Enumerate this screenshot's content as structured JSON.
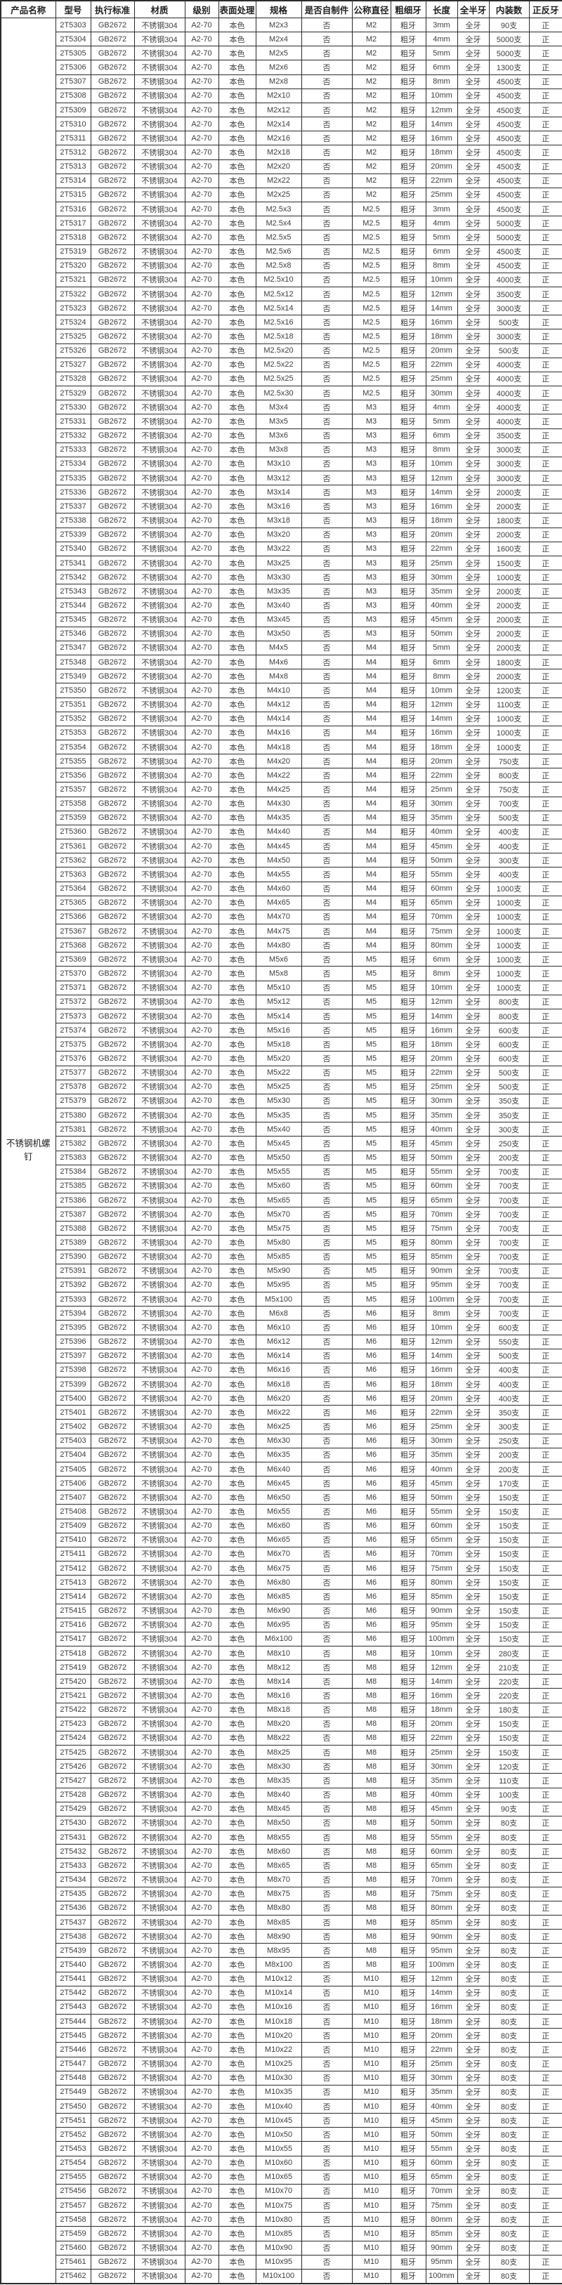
{
  "colors": {
    "border": "#2b2b2b",
    "text": "#3f3f3f",
    "header_text": "#1f1f1f",
    "background": "#ffffff"
  },
  "table": {
    "product_name": "不锈钢机螺钉",
    "columns": [
      {
        "key": "product_name",
        "label": "产品名称"
      },
      {
        "key": "model",
        "label": "型号"
      },
      {
        "key": "standard",
        "label": "执行标准"
      },
      {
        "key": "material",
        "label": "材质"
      },
      {
        "key": "grade",
        "label": "级别"
      },
      {
        "key": "surface_finish",
        "label": "表面处理"
      },
      {
        "key": "spec",
        "label": "规格"
      },
      {
        "key": "self_made",
        "label": "是否自制件"
      },
      {
        "key": "nominal_diameter",
        "label": "公称直径"
      },
      {
        "key": "thread_pitch",
        "label": "粗细牙"
      },
      {
        "key": "length",
        "label": "长度"
      },
      {
        "key": "thread_coverage",
        "label": "全半牙"
      },
      {
        "key": "pack_quantity",
        "label": "内装数"
      },
      {
        "key": "thread_direction",
        "label": "正反牙"
      }
    ],
    "shared": {
      "standard": "GB2672",
      "material": "不锈钢304",
      "grade": "A2-70",
      "surface_finish": "本色",
      "self_made": "否",
      "thread_pitch": "粗牙",
      "thread_coverage": "全牙",
      "thread_direction": "正"
    },
    "rows": [
      [
        "2T5303",
        "M2x3",
        "M2",
        "3mm",
        "90支"
      ],
      [
        "2T5304",
        "M2x4",
        "M2",
        "4mm",
        "5000支"
      ],
      [
        "2T5305",
        "M2x5",
        "M2",
        "5mm",
        "5000支"
      ],
      [
        "2T5306",
        "M2x6",
        "M2",
        "6mm",
        "1300支"
      ],
      [
        "2T5307",
        "M2x8",
        "M2",
        "8mm",
        "4500支"
      ],
      [
        "2T5308",
        "M2x10",
        "M2",
        "10mm",
        "4500支"
      ],
      [
        "2T5309",
        "M2x12",
        "M2",
        "12mm",
        "4500支"
      ],
      [
        "2T5310",
        "M2x14",
        "M2",
        "14mm",
        "4500支"
      ],
      [
        "2T5311",
        "M2x16",
        "M2",
        "16mm",
        "4500支"
      ],
      [
        "2T5312",
        "M2x18",
        "M2",
        "18mm",
        "4500支"
      ],
      [
        "2T5313",
        "M2x20",
        "M2",
        "20mm",
        "4500支"
      ],
      [
        "2T5314",
        "M2x22",
        "M2",
        "22mm",
        "4500支"
      ],
      [
        "2T5315",
        "M2x25",
        "M2",
        "25mm",
        "4500支"
      ],
      [
        "2T5316",
        "M2.5x3",
        "M2.5",
        "3mm",
        "4500支"
      ],
      [
        "2T5317",
        "M2.5x4",
        "M2.5",
        "4mm",
        "5000支"
      ],
      [
        "2T5318",
        "M2.5x5",
        "M2.5",
        "5mm",
        "5000支"
      ],
      [
        "2T5319",
        "M2.5x6",
        "M2.5",
        "6mm",
        "4500支"
      ],
      [
        "2T5320",
        "M2.5x8",
        "M2.5",
        "8mm",
        "4500支"
      ],
      [
        "2T5321",
        "M2.5x10",
        "M2.5",
        "10mm",
        "4000支"
      ],
      [
        "2T5322",
        "M2.5x12",
        "M2.5",
        "12mm",
        "3500支"
      ],
      [
        "2T5323",
        "M2.5x14",
        "M2.5",
        "14mm",
        "3000支"
      ],
      [
        "2T5324",
        "M2.5x16",
        "M2.5",
        "16mm",
        "500支"
      ],
      [
        "2T5325",
        "M2.5x18",
        "M2.5",
        "18mm",
        "3000支"
      ],
      [
        "2T5326",
        "M2.5x20",
        "M2.5",
        "20mm",
        "500支"
      ],
      [
        "2T5327",
        "M2.5x22",
        "M2.5",
        "22mm",
        "4000支"
      ],
      [
        "2T5328",
        "M2.5x25",
        "M2.5",
        "25mm",
        "4000支"
      ],
      [
        "2T5329",
        "M2.5x30",
        "M2.5",
        "30mm",
        "4000支"
      ],
      [
        "2T5330",
        "M3x4",
        "M3",
        "4mm",
        "4000支"
      ],
      [
        "2T5331",
        "M3x5",
        "M3",
        "5mm",
        "4000支"
      ],
      [
        "2T5332",
        "M3x6",
        "M3",
        "6mm",
        "3500支"
      ],
      [
        "2T5333",
        "M3x8",
        "M3",
        "8mm",
        "3000支"
      ],
      [
        "2T5334",
        "M3x10",
        "M3",
        "10mm",
        "3000支"
      ],
      [
        "2T5335",
        "M3x12",
        "M3",
        "12mm",
        "3000支"
      ],
      [
        "2T5336",
        "M3x14",
        "M3",
        "14mm",
        "2000支"
      ],
      [
        "2T5337",
        "M3x16",
        "M3",
        "16mm",
        "2000支"
      ],
      [
        "2T5338",
        "M3x18",
        "M3",
        "18mm",
        "1800支"
      ],
      [
        "2T5339",
        "M3x20",
        "M3",
        "20mm",
        "2000支"
      ],
      [
        "2T5340",
        "M3x22",
        "M3",
        "22mm",
        "1600支"
      ],
      [
        "2T5341",
        "M3x25",
        "M3",
        "25mm",
        "1500支"
      ],
      [
        "2T5342",
        "M3x30",
        "M3",
        "30mm",
        "1000支"
      ],
      [
        "2T5343",
        "M3x35",
        "M3",
        "35mm",
        "2000支"
      ],
      [
        "2T5344",
        "M3x40",
        "M3",
        "40mm",
        "2000支"
      ],
      [
        "2T5345",
        "M3x45",
        "M3",
        "45mm",
        "2000支"
      ],
      [
        "2T5346",
        "M3x50",
        "M3",
        "50mm",
        "2000支"
      ],
      [
        "2T5347",
        "M4x5",
        "M4",
        "5mm",
        "2000支"
      ],
      [
        "2T5348",
        "M4x6",
        "M4",
        "6mm",
        "1800支"
      ],
      [
        "2T5349",
        "M4x8",
        "M4",
        "8mm",
        "2000支"
      ],
      [
        "2T5350",
        "M4x10",
        "M4",
        "10mm",
        "1200支"
      ],
      [
        "2T5351",
        "M4x12",
        "M4",
        "12mm",
        "1100支"
      ],
      [
        "2T5352",
        "M4x14",
        "M4",
        "14mm",
        "1000支"
      ],
      [
        "2T5353",
        "M4x16",
        "M4",
        "16mm",
        "1000支"
      ],
      [
        "2T5354",
        "M4x18",
        "M4",
        "18mm",
        "1000支"
      ],
      [
        "2T5355",
        "M4x20",
        "M4",
        "20mm",
        "750支"
      ],
      [
        "2T5356",
        "M4x22",
        "M4",
        "22mm",
        "800支"
      ],
      [
        "2T5357",
        "M4x25",
        "M4",
        "25mm",
        "750支"
      ],
      [
        "2T5358",
        "M4x30",
        "M4",
        "30mm",
        "700支"
      ],
      [
        "2T5359",
        "M4x35",
        "M4",
        "35mm",
        "500支"
      ],
      [
        "2T5360",
        "M4x40",
        "M4",
        "40mm",
        "400支"
      ],
      [
        "2T5361",
        "M4x45",
        "M4",
        "45mm",
        "400支"
      ],
      [
        "2T5362",
        "M4x50",
        "M4",
        "50mm",
        "300支"
      ],
      [
        "2T5363",
        "M4x55",
        "M4",
        "55mm",
        "400支"
      ],
      [
        "2T5364",
        "M4x60",
        "M4",
        "60mm",
        "1000支"
      ],
      [
        "2T5365",
        "M4x65",
        "M4",
        "65mm",
        "1000支"
      ],
      [
        "2T5366",
        "M4x70",
        "M4",
        "70mm",
        "1000支"
      ],
      [
        "2T5367",
        "M4x75",
        "M4",
        "75mm",
        "1000支"
      ],
      [
        "2T5368",
        "M4x80",
        "M4",
        "80mm",
        "1000支"
      ],
      [
        "2T5369",
        "M5x6",
        "M5",
        "6mm",
        "1000支"
      ],
      [
        "2T5370",
        "M5x8",
        "M5",
        "8mm",
        "1000支"
      ],
      [
        "2T5371",
        "M5x10",
        "M5",
        "10mm",
        "1000支"
      ],
      [
        "2T5372",
        "M5x12",
        "M5",
        "12mm",
        "800支"
      ],
      [
        "2T5373",
        "M5x14",
        "M5",
        "14mm",
        "800支"
      ],
      [
        "2T5374",
        "M5x16",
        "M5",
        "16mm",
        "600支"
      ],
      [
        "2T5375",
        "M5x18",
        "M5",
        "18mm",
        "600支"
      ],
      [
        "2T5376",
        "M5x20",
        "M5",
        "20mm",
        "600支"
      ],
      [
        "2T5377",
        "M5x22",
        "M5",
        "22mm",
        "500支"
      ],
      [
        "2T5378",
        "M5x25",
        "M5",
        "25mm",
        "500支"
      ],
      [
        "2T5379",
        "M5x30",
        "M5",
        "30mm",
        "350支"
      ],
      [
        "2T5380",
        "M5x35",
        "M5",
        "35mm",
        "350支"
      ],
      [
        "2T5381",
        "M5x40",
        "M5",
        "40mm",
        "300支"
      ],
      [
        "2T5382",
        "M5x45",
        "M5",
        "45mm",
        "250支"
      ],
      [
        "2T5383",
        "M5x50",
        "M5",
        "50mm",
        "200支"
      ],
      [
        "2T5384",
        "M5x55",
        "M5",
        "55mm",
        "700支"
      ],
      [
        "2T5385",
        "M5x60",
        "M5",
        "60mm",
        "700支"
      ],
      [
        "2T5386",
        "M5x65",
        "M5",
        "65mm",
        "700支"
      ],
      [
        "2T5387",
        "M5x70",
        "M5",
        "70mm",
        "700支"
      ],
      [
        "2T5388",
        "M5x75",
        "M5",
        "75mm",
        "700支"
      ],
      [
        "2T5389",
        "M5x80",
        "M5",
        "80mm",
        "700支"
      ],
      [
        "2T5390",
        "M5x85",
        "M5",
        "85mm",
        "700支"
      ],
      [
        "2T5391",
        "M5x90",
        "M5",
        "90mm",
        "700支"
      ],
      [
        "2T5392",
        "M5x95",
        "M5",
        "95mm",
        "700支"
      ],
      [
        "2T5393",
        "M5x100",
        "M5",
        "100mm",
        "700支"
      ],
      [
        "2T5394",
        "M6x8",
        "M6",
        "8mm",
        "700支"
      ],
      [
        "2T5395",
        "M6x10",
        "M6",
        "10mm",
        "600支"
      ],
      [
        "2T5396",
        "M6x12",
        "M6",
        "12mm",
        "550支"
      ],
      [
        "2T5397",
        "M6x14",
        "M6",
        "14mm",
        "500支"
      ],
      [
        "2T5398",
        "M6x16",
        "M6",
        "16mm",
        "400支"
      ],
      [
        "2T5399",
        "M6x18",
        "M6",
        "18mm",
        "400支"
      ],
      [
        "2T5400",
        "M6x20",
        "M6",
        "20mm",
        "400支"
      ],
      [
        "2T5401",
        "M6x22",
        "M6",
        "22mm",
        "350支"
      ],
      [
        "2T5402",
        "M6x25",
        "M6",
        "25mm",
        "300支"
      ],
      [
        "2T5403",
        "M6x30",
        "M6",
        "30mm",
        "250支"
      ],
      [
        "2T5404",
        "M6x35",
        "M6",
        "35mm",
        "200支"
      ],
      [
        "2T5405",
        "M6x40",
        "M6",
        "40mm",
        "200支"
      ],
      [
        "2T5406",
        "M6x45",
        "M6",
        "45mm",
        "170支"
      ],
      [
        "2T5407",
        "M6x50",
        "M6",
        "50mm",
        "150支"
      ],
      [
        "2T5408",
        "M6x55",
        "M6",
        "55mm",
        "150支"
      ],
      [
        "2T5409",
        "M6x60",
        "M6",
        "60mm",
        "150支"
      ],
      [
        "2T5410",
        "M6x65",
        "M6",
        "65mm",
        "150支"
      ],
      [
        "2T5411",
        "M6x70",
        "M6",
        "70mm",
        "150支"
      ],
      [
        "2T5412",
        "M6x75",
        "M6",
        "75mm",
        "150支"
      ],
      [
        "2T5413",
        "M6x80",
        "M6",
        "80mm",
        "150支"
      ],
      [
        "2T5414",
        "M6x85",
        "M6",
        "85mm",
        "150支"
      ],
      [
        "2T5415",
        "M6x90",
        "M6",
        "90mm",
        "150支"
      ],
      [
        "2T5416",
        "M6x95",
        "M6",
        "95mm",
        "150支"
      ],
      [
        "2T5417",
        "M6x100",
        "M6",
        "100mm",
        "150支"
      ],
      [
        "2T5418",
        "M8x10",
        "M8",
        "10mm",
        "280支"
      ],
      [
        "2T5419",
        "M8x12",
        "M8",
        "12mm",
        "210支"
      ],
      [
        "2T5420",
        "M8x14",
        "M8",
        "14mm",
        "220支"
      ],
      [
        "2T5421",
        "M8x16",
        "M8",
        "16mm",
        "220支"
      ],
      [
        "2T5422",
        "M8x18",
        "M8",
        "18mm",
        "180支"
      ],
      [
        "2T5423",
        "M8x20",
        "M8",
        "20mm",
        "150支"
      ],
      [
        "2T5424",
        "M8x22",
        "M8",
        "22mm",
        "150支"
      ],
      [
        "2T5425",
        "M8x25",
        "M8",
        "25mm",
        "150支"
      ],
      [
        "2T5426",
        "M8x30",
        "M8",
        "30mm",
        "120支"
      ],
      [
        "2T5427",
        "M8x35",
        "M8",
        "35mm",
        "110支"
      ],
      [
        "2T5428",
        "M8x40",
        "M8",
        "40mm",
        "100支"
      ],
      [
        "2T5429",
        "M8x45",
        "M8",
        "45mm",
        "90支"
      ],
      [
        "2T5430",
        "M8x50",
        "M8",
        "50mm",
        "80支"
      ],
      [
        "2T5431",
        "M8x55",
        "M8",
        "55mm",
        "80支"
      ],
      [
        "2T5432",
        "M8x60",
        "M8",
        "60mm",
        "80支"
      ],
      [
        "2T5433",
        "M8x65",
        "M8",
        "65mm",
        "80支"
      ],
      [
        "2T5434",
        "M8x70",
        "M8",
        "70mm",
        "80支"
      ],
      [
        "2T5435",
        "M8x75",
        "M8",
        "75mm",
        "80支"
      ],
      [
        "2T5436",
        "M8x80",
        "M8",
        "80mm",
        "80支"
      ],
      [
        "2T5437",
        "M8x85",
        "M8",
        "85mm",
        "80支"
      ],
      [
        "2T5438",
        "M8x90",
        "M8",
        "90mm",
        "80支"
      ],
      [
        "2T5439",
        "M8x95",
        "M8",
        "95mm",
        "80支"
      ],
      [
        "2T5440",
        "M8x100",
        "M8",
        "100mm",
        "80支"
      ],
      [
        "2T5441",
        "M10x12",
        "M10",
        "12mm",
        "80支"
      ],
      [
        "2T5442",
        "M10x14",
        "M10",
        "14mm",
        "80支"
      ],
      [
        "2T5443",
        "M10x16",
        "M10",
        "16mm",
        "80支"
      ],
      [
        "2T5444",
        "M10x18",
        "M10",
        "18mm",
        "80支"
      ],
      [
        "2T5445",
        "M10x20",
        "M10",
        "20mm",
        "80支"
      ],
      [
        "2T5446",
        "M10x22",
        "M10",
        "22mm",
        "80支"
      ],
      [
        "2T5447",
        "M10x25",
        "M10",
        "25mm",
        "80支"
      ],
      [
        "2T5448",
        "M10x30",
        "M10",
        "30mm",
        "80支"
      ],
      [
        "2T5449",
        "M10x35",
        "M10",
        "35mm",
        "80支"
      ],
      [
        "2T5450",
        "M10x40",
        "M10",
        "40mm",
        "80支"
      ],
      [
        "2T5451",
        "M10x45",
        "M10",
        "45mm",
        "80支"
      ],
      [
        "2T5452",
        "M10x50",
        "M10",
        "50mm",
        "80支"
      ],
      [
        "2T5453",
        "M10x55",
        "M10",
        "55mm",
        "80支"
      ],
      [
        "2T5454",
        "M10x60",
        "M10",
        "60mm",
        "80支"
      ],
      [
        "2T5455",
        "M10x65",
        "M10",
        "65mm",
        "80支"
      ],
      [
        "2T5456",
        "M10x70",
        "M10",
        "70mm",
        "80支"
      ],
      [
        "2T5457",
        "M10x75",
        "M10",
        "75mm",
        "80支"
      ],
      [
        "2T5458",
        "M10x80",
        "M10",
        "80mm",
        "80支"
      ],
      [
        "2T5459",
        "M10x85",
        "M10",
        "85mm",
        "80支"
      ],
      [
        "2T5460",
        "M10x90",
        "M10",
        "90mm",
        "80支"
      ],
      [
        "2T5461",
        "M10x95",
        "M10",
        "95mm",
        "80支"
      ],
      [
        "2T5462",
        "M10x100",
        "M10",
        "100mm",
        "80支"
      ]
    ]
  }
}
